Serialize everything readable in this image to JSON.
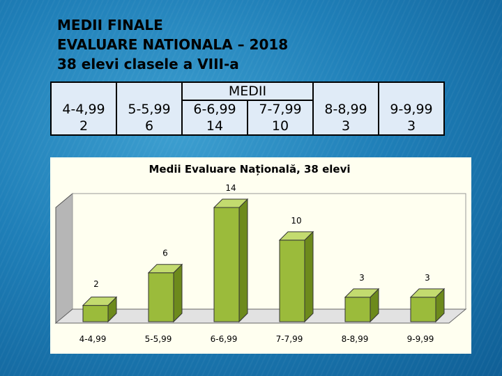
{
  "title_lines": [
    "MEDII FINALE",
    "EVALUARE NATIONALA – 2018",
    "38 elevi clasele a VIII-a"
  ],
  "table": {
    "header": "MEDII",
    "ranges": [
      "4-4,99",
      "5-5,99",
      "6-6,99",
      "7-7,99",
      "8-8,99",
      "9-9,99"
    ],
    "counts": [
      "2",
      "6",
      "14",
      "10",
      "3",
      "3"
    ]
  },
  "colors": {
    "bar_front": "#9bbb3b",
    "bar_side": "#6d8a1c",
    "bar_top": "#c3db6f",
    "wall": "#b6b6b6",
    "floor": "#e2e2e2",
    "chart_bg": "#fffff0",
    "table_bg": "#e0ebf7"
  },
  "chart_data": {
    "type": "bar",
    "title": "Medii Evaluare Națională, 38 elevi",
    "categories": [
      "4-4,99",
      "5-5,99",
      "6-6,99",
      "7-7,99",
      "8-8,99",
      "9-9,99"
    ],
    "values": [
      2,
      6,
      14,
      10,
      3,
      3
    ],
    "data_labels": [
      "2",
      "6",
      "14",
      "10",
      "3",
      "3"
    ],
    "ylim": [
      0,
      14
    ],
    "three_d": true,
    "grid": false,
    "legend": "none"
  }
}
